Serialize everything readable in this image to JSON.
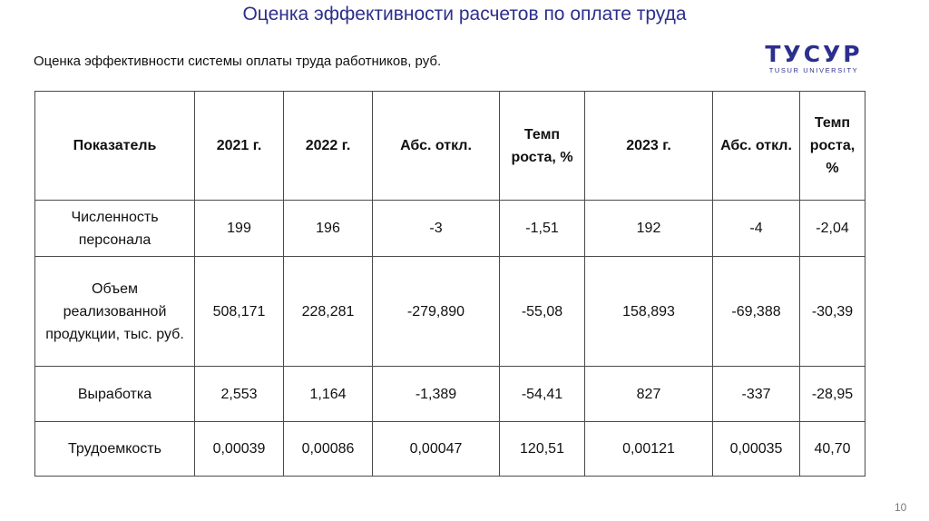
{
  "title": "Оценка эффективности расчетов по оплате труда",
  "subtitle": "Оценка эффективности системы оплаты труда работников, руб.",
  "logo": {
    "name": "ТУСУР",
    "sub": "TUSUR UNIVERSITY",
    "color": "#2c2f8c"
  },
  "table": {
    "headers": [
      "Показатель",
      "2021 г.",
      "2022 г.",
      "Абс. откл.",
      "Темп роста, %",
      "2023 г.",
      "Абс. откл.",
      "Темп роста, %"
    ],
    "rows": [
      [
        "Численность персонала",
        "199",
        "196",
        "-3",
        "-1,51",
        "192",
        "-4",
        "-2,04"
      ],
      [
        "Объем реализованной продукции, тыс. руб.",
        "508,171",
        "228,281",
        "-279,890",
        "-55,08",
        "158,893",
        "-69,388",
        "-30,39"
      ],
      [
        "Выработка",
        "2,553",
        "1,164",
        "-1,389",
        "-54,41",
        "827",
        "-337",
        "-28,95"
      ],
      [
        "Трудоемкость",
        "0,00039",
        "0,00086",
        "0,00047",
        "120,51",
        "0,00121",
        "0,00035",
        "40,70"
      ]
    ]
  },
  "page_number": "10"
}
